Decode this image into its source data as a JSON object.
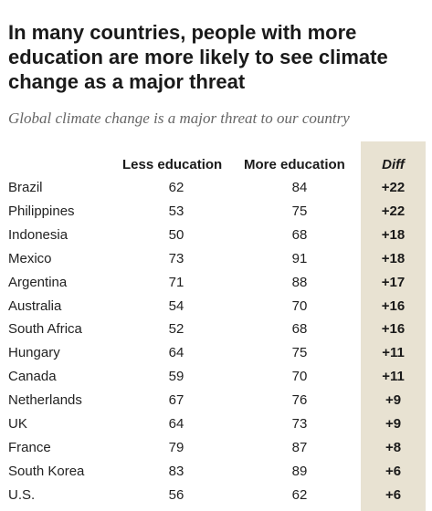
{
  "title": "In many countries, people with more education are more likely to see climate change as a major threat",
  "subtitle": "Global climate change is a major threat to our country",
  "chart_data": {
    "type": "table",
    "columns": [
      "Less education",
      "More education",
      "Diff"
    ],
    "rows": [
      {
        "country": "Brazil",
        "less": "62",
        "more": "84",
        "diff": "+22"
      },
      {
        "country": "Philippines",
        "less": "53",
        "more": "75",
        "diff": "+22"
      },
      {
        "country": "Indonesia",
        "less": "50",
        "more": "68",
        "diff": "+18"
      },
      {
        "country": "Mexico",
        "less": "73",
        "more": "91",
        "diff": "+18"
      },
      {
        "country": "Argentina",
        "less": "71",
        "more": "88",
        "diff": "+17"
      },
      {
        "country": "Australia",
        "less": "54",
        "more": "70",
        "diff": "+16"
      },
      {
        "country": "South Africa",
        "less": "52",
        "more": "68",
        "diff": "+16"
      },
      {
        "country": "Hungary",
        "less": "64",
        "more": "75",
        "diff": "+11"
      },
      {
        "country": "Canada",
        "less": "59",
        "more": "70",
        "diff": "+11"
      },
      {
        "country": "Netherlands",
        "less": "67",
        "more": "76",
        "diff": "+9"
      },
      {
        "country": "UK",
        "less": "64",
        "more": "73",
        "diff": "+9"
      },
      {
        "country": "France",
        "less": "79",
        "more": "87",
        "diff": "+8"
      },
      {
        "country": "South Korea",
        "less": "83",
        "more": "89",
        "diff": "+6"
      },
      {
        "country": "U.S.",
        "less": "56",
        "more": "62",
        "diff": "+6"
      }
    ]
  },
  "colors": {
    "diff_band": "#e8e2d2",
    "text": "#222222",
    "subtitle": "#666666"
  }
}
